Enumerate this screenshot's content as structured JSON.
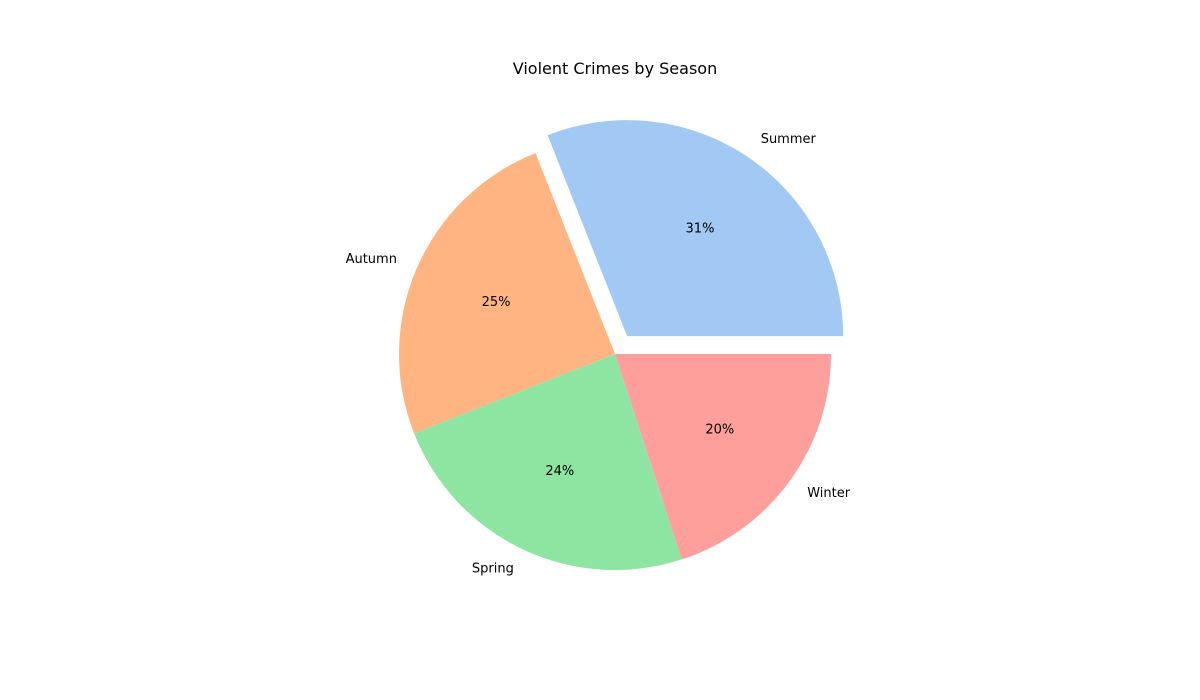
{
  "chart_data": {
    "type": "pie",
    "title": "Violent Crimes by Season",
    "slices": [
      {
        "label": "Summer",
        "value": 31,
        "pct_label": "31%",
        "color": "#a1c9f4",
        "exploded": true
      },
      {
        "label": "Autumn",
        "value": 25,
        "pct_label": "25%",
        "color": "#ffb482",
        "exploded": false
      },
      {
        "label": "Spring",
        "value": 24,
        "pct_label": "24%",
        "color": "#8de5a1",
        "exploded": false
      },
      {
        "label": "Winter",
        "value": 20,
        "pct_label": "20%",
        "color": "#ff9f9b",
        "exploded": false
      }
    ],
    "start_angle_deg": 0,
    "direction": "counterclockwise"
  }
}
